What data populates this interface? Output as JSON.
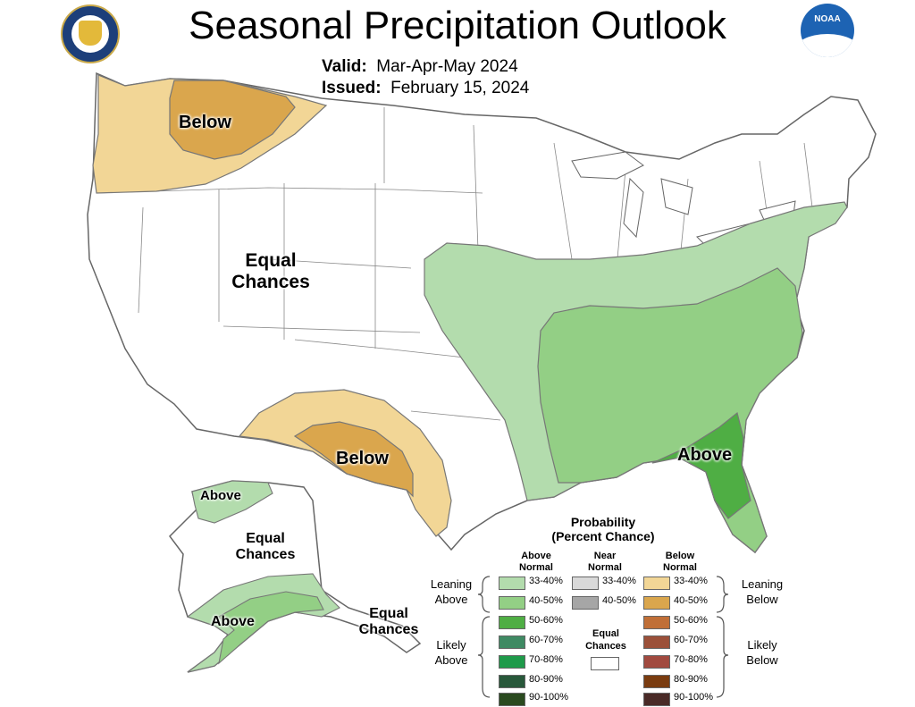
{
  "title": "Seasonal Precipitation Outlook",
  "valid": {
    "label": "Valid:",
    "value": "Mar-Apr-May 2024"
  },
  "issued": {
    "label": "Issued:",
    "value": "February 15, 2024"
  },
  "logos": {
    "left": "commerce-department-seal",
    "right": "noaa-logo",
    "noaa_text": "NOAA"
  },
  "map_labels": {
    "nw_below": "Below",
    "west_equal_1": "Equal",
    "west_equal_2": "Chances",
    "sw_below": "Below",
    "se_above": "Above",
    "ak_above_nw": "Above",
    "ak_equal_1": "Equal",
    "ak_equal_2": "Chances",
    "ak_above_s": "Above",
    "ak_se_equal_1": "Equal",
    "ak_se_equal_2": "Chances"
  },
  "colors": {
    "above_33_40": "#b3dcad",
    "above_40_50": "#93cf85",
    "above_50_60": "#4fae44",
    "above_60_70": "#3f8a63",
    "above_70_80": "#1f9a4a",
    "above_80_90": "#28583a",
    "above_90_100": "#2a4a1f",
    "near_33_40": "#d9d9d9",
    "near_40_50": "#a6a6a6",
    "below_33_40": "#f2d696",
    "below_40_50": "#daa64d",
    "below_50_60": "#c06f37",
    "below_60_70": "#9b5039",
    "below_70_80": "#a14a3f",
    "below_80_90": "#7a3c10",
    "below_90_100": "#4a2a27",
    "equal": "#ffffff",
    "border": "#666666"
  },
  "legend": {
    "title_1": "Probability",
    "title_2": "(Percent Chance)",
    "col_above_1": "Above",
    "col_above_2": "Normal",
    "col_near_1": "Near",
    "col_near_2": "Normal",
    "col_below_1": "Below",
    "col_below_2": "Normal",
    "leaning_above_1": "Leaning",
    "leaning_above_2": "Above",
    "leaning_below_1": "Leaning",
    "leaning_below_2": "Below",
    "likely_above_1": "Likely",
    "likely_above_2": "Above",
    "likely_below_1": "Likely",
    "likely_below_2": "Below",
    "equal_1": "Equal",
    "equal_2": "Chances",
    "above_labels": [
      "33-40%",
      "40-50%",
      "50-60%",
      "60-70%",
      "70-80%",
      "80-90%",
      "90-100%"
    ],
    "near_labels": [
      "33-40%",
      "40-50%"
    ],
    "below_labels": [
      "33-40%",
      "40-50%",
      "50-60%",
      "60-70%",
      "70-80%",
      "80-90%",
      "90-100%"
    ]
  }
}
